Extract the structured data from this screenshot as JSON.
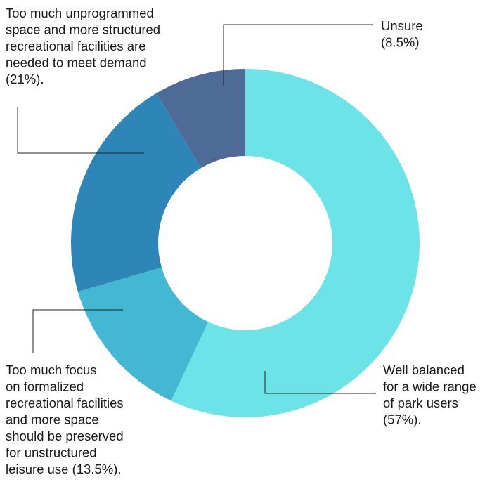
{
  "chart_data": {
    "type": "pie",
    "donut": true,
    "start_angle_deg": 0,
    "direction": "clockwise",
    "slices": [
      {
        "id": "well-balanced",
        "value": 57,
        "color": "#6ce3e6",
        "lines": [
          "Well balanced",
          "for a wide range",
          "of park users",
          "(57%)."
        ]
      },
      {
        "id": "too-much-focus",
        "value": 13.5,
        "color": "#44b7d3",
        "lines": [
          "Too much focus",
          "on formalized",
          "recreational facilities",
          "and more space",
          "should be preserved",
          "for unstructured",
          "leisure use (13.5%)."
        ]
      },
      {
        "id": "too-much-unprogrammed",
        "value": 21,
        "color": "#2e86b8",
        "lines": [
          "Too much unprogrammed",
          "space and more structured",
          "recreational facilities are",
          "needed to meet demand",
          "(21%)."
        ]
      },
      {
        "id": "unsure",
        "value": 8.5,
        "color": "#4e6a96",
        "lines": [
          "Unsure",
          "(8.5%)"
        ]
      }
    ]
  }
}
